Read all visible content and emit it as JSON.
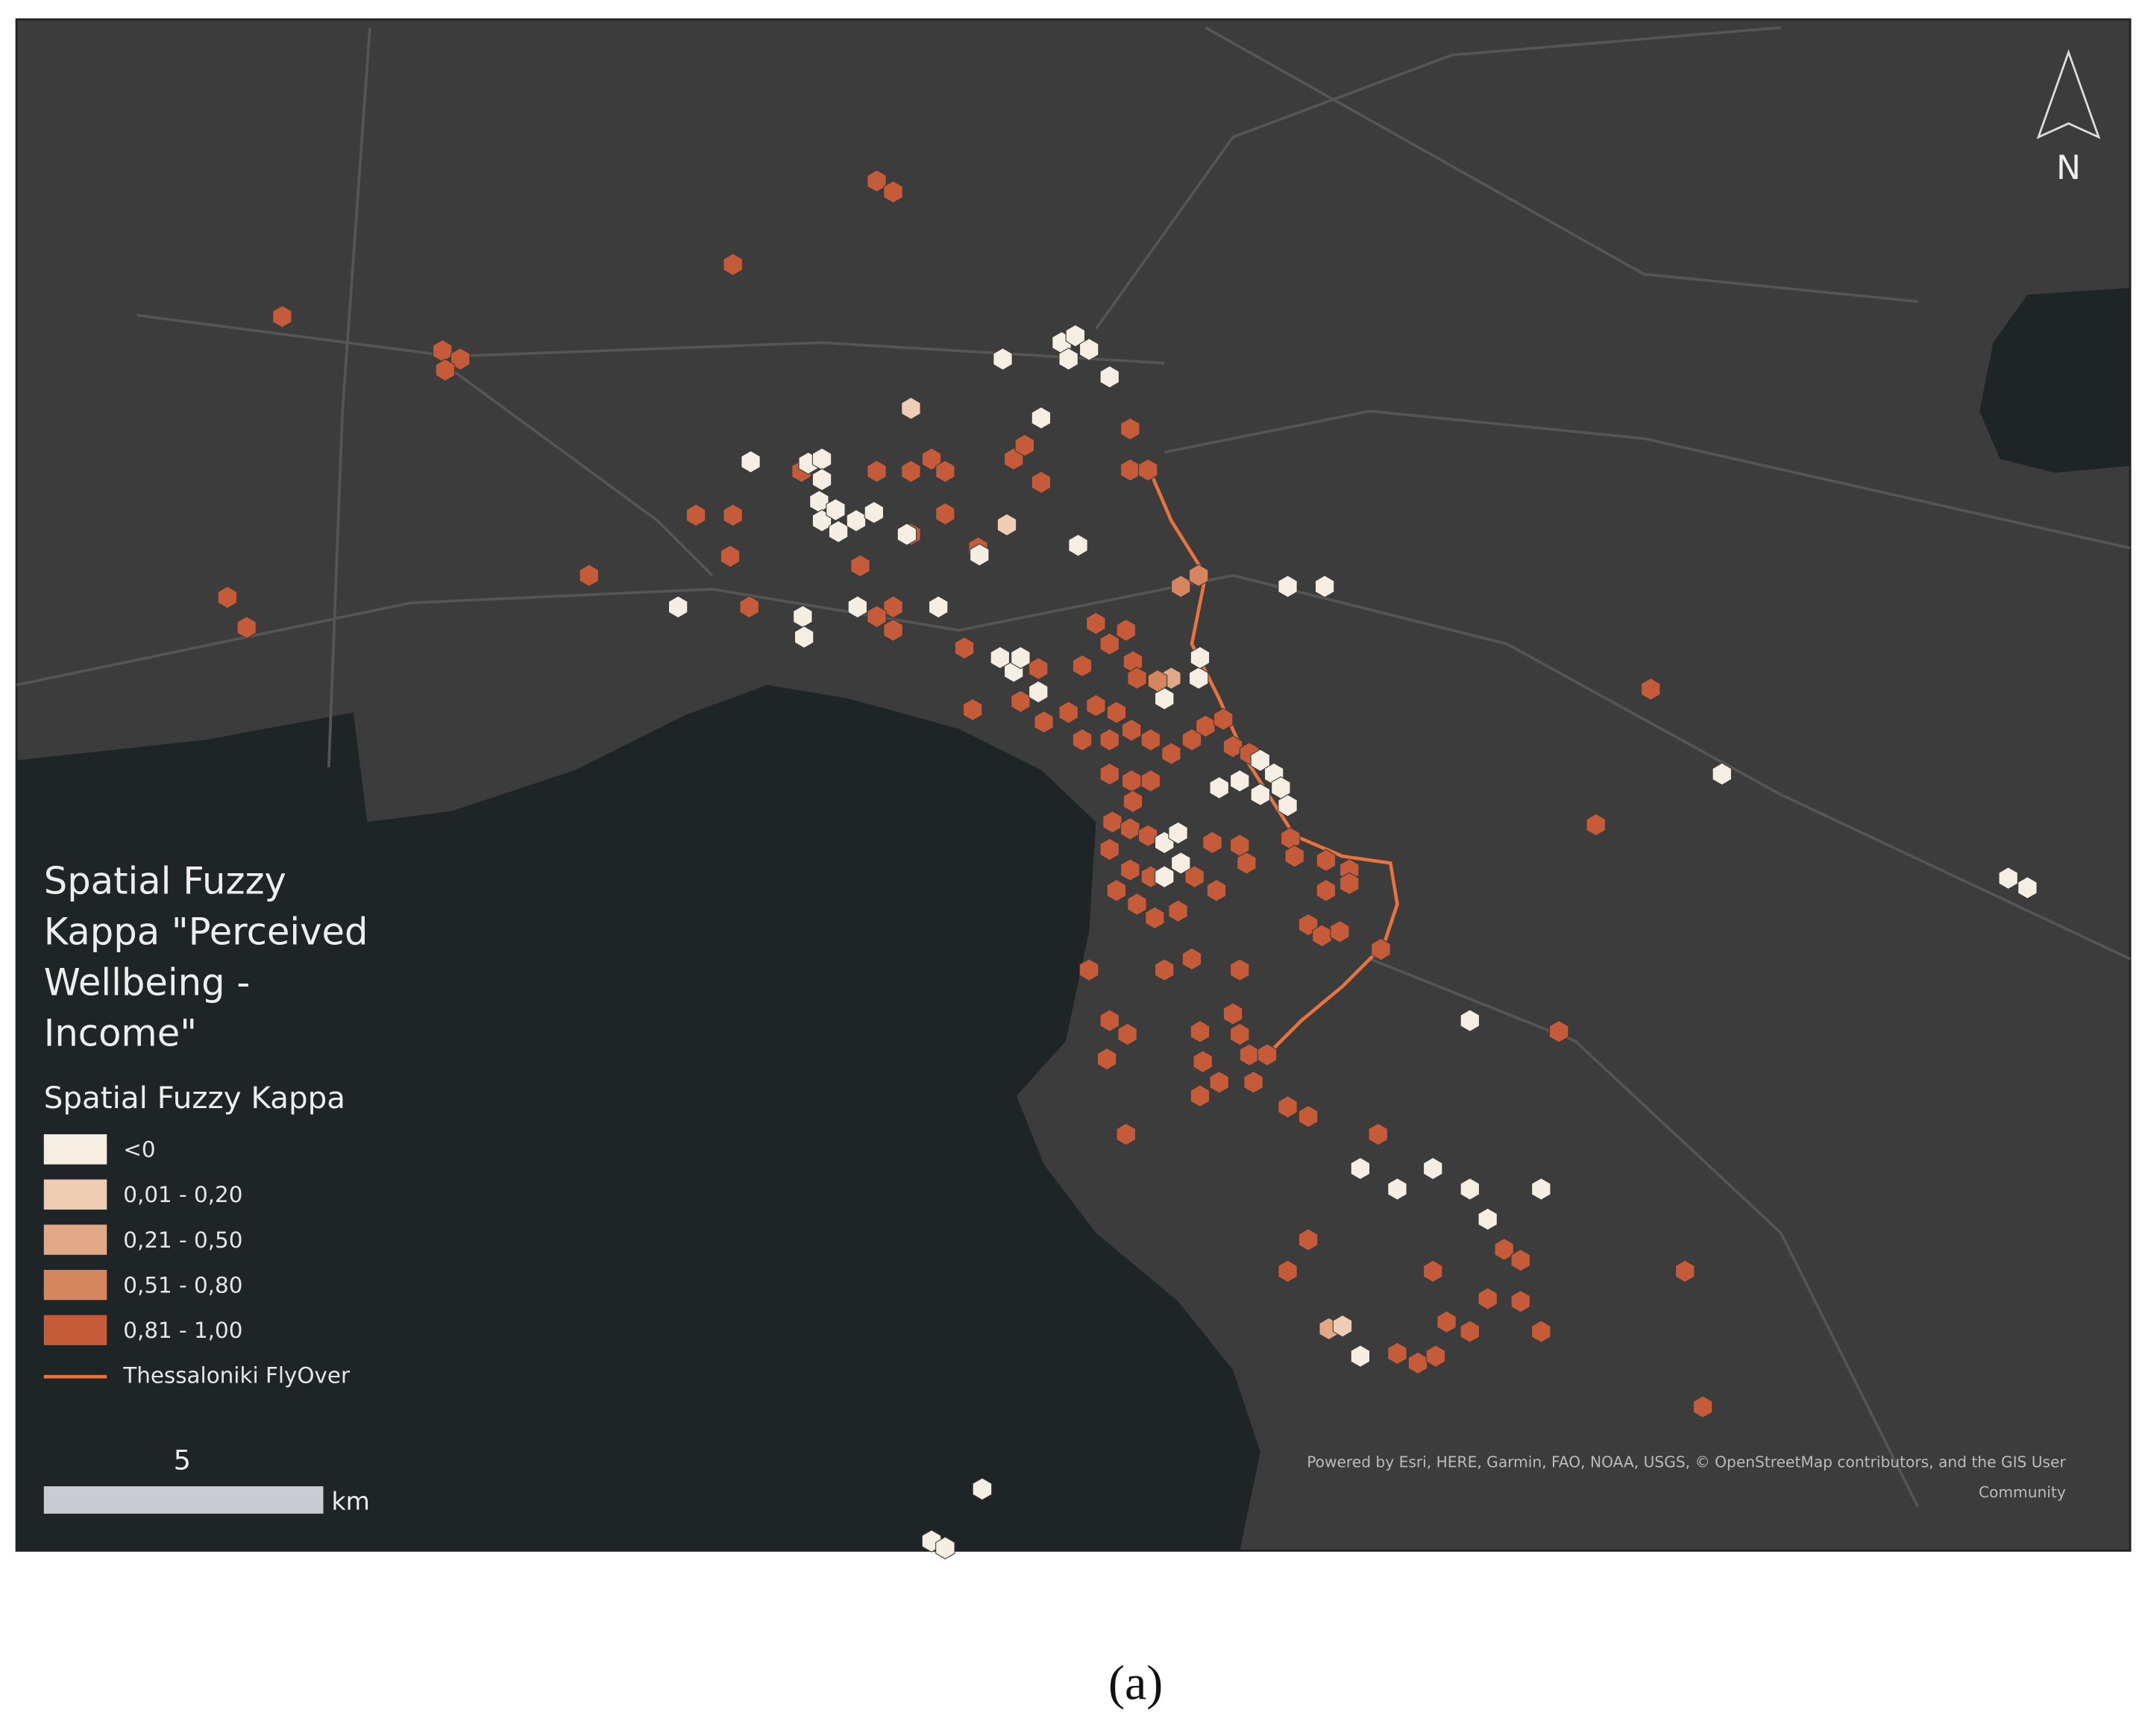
{
  "map": {
    "legend": {
      "title_lines": [
        "Spatial Fuzzy",
        "Kappa \"Perceived",
        "Wellbeing -",
        "Income\""
      ],
      "subtitle": "Spatial Fuzzy Kappa",
      "classes": [
        {
          "label": "<0",
          "color": "#f6eee3"
        },
        {
          "label": "0,01 - 0,20",
          "color": "#efcdb4"
        },
        {
          "label": "0,21 - 0,50",
          "color": "#e2a987"
        },
        {
          "label": "0,51 - 0,80",
          "color": "#d5865f"
        },
        {
          "label": "0,81 - 1,00",
          "color": "#c55b39"
        }
      ],
      "line": {
        "label": "Thessaloniki FlyOver",
        "color": "#e8733f"
      }
    },
    "scale_bar": {
      "value": 5,
      "unit": "km"
    },
    "north": "N",
    "attribution": [
      "Powered by Esri, HERE, Garmin, FAO, NOAA, USGS, © OpenStreetMap contributors, and the GIS User",
      "Community"
    ],
    "caption": "(a)"
  }
}
